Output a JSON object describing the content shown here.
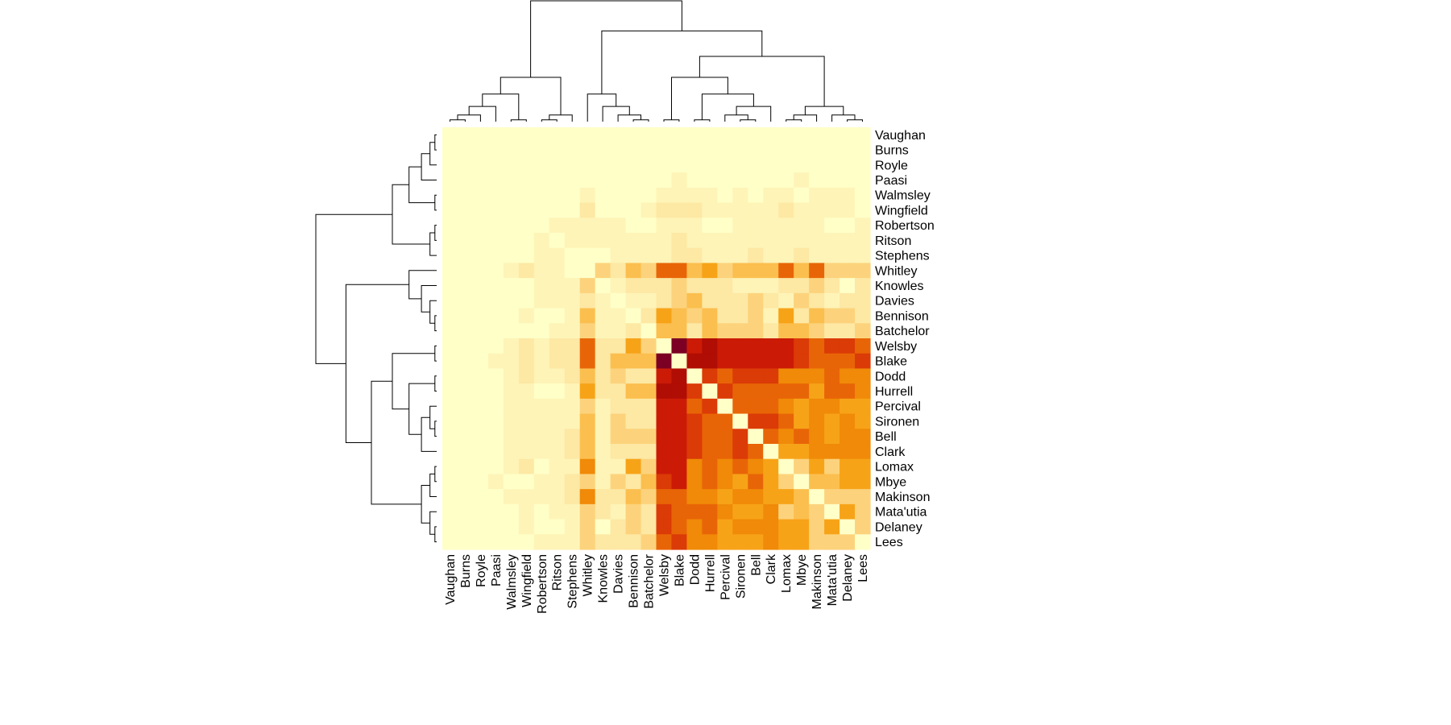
{
  "chart_data": {
    "type": "heatmap",
    "title": "",
    "xlabel": "",
    "ylabel": "",
    "rows": [
      "Vaughan",
      "Burns",
      "Royle",
      "Paasi",
      "Walmsley",
      "Wingfield",
      "Robertson",
      "Ritson",
      "Stephens",
      "Whitley",
      "Knowles",
      "Davies",
      "Bennison",
      "Batchelor",
      "Welsby",
      "Blake",
      "Dodd",
      "Hurrell",
      "Percival",
      "Sironen",
      "Bell",
      "Clark",
      "Lomax",
      "Mbye",
      "Makinson",
      "Mata'utia",
      "Delaney",
      "Lees"
    ],
    "columns": [
      "Vaughan",
      "Burns",
      "Royle",
      "Paasi",
      "Walmsley",
      "Wingfield",
      "Robertson",
      "Ritson",
      "Stephens",
      "Whitley",
      "Knowles",
      "Davies",
      "Bennison",
      "Batchelor",
      "Welsby",
      "Blake",
      "Dodd",
      "Hurrell",
      "Percival",
      "Sironen",
      "Bell",
      "Clark",
      "Lomax",
      "Mbye",
      "Makinson",
      "Mata'utia",
      "Delaney",
      "Lees"
    ],
    "color_scale": [
      "#ffffc8",
      "#fef4b7",
      "#fde8a4",
      "#fcd37c",
      "#fbbf4f",
      "#f7a318",
      "#f08a08",
      "#e86507",
      "#db3b07",
      "#cb1b07",
      "#b00d04",
      "#7b0023"
    ],
    "diagonal_color": "#ffffc8",
    "dendrograms": true,
    "values": [
      [
        0,
        0,
        0,
        0,
        0,
        0,
        0,
        0,
        0,
        0,
        0,
        0,
        0,
        0,
        0,
        0,
        0,
        0,
        0,
        0,
        0,
        0,
        0,
        0,
        0,
        0,
        0,
        0
      ],
      [
        0,
        0,
        0,
        0,
        0,
        0,
        0,
        0,
        0,
        0,
        0,
        0,
        0,
        0,
        0,
        0,
        0,
        0,
        0,
        0,
        0,
        0,
        0,
        0,
        0,
        0,
        0,
        0
      ],
      [
        0,
        0,
        0,
        0,
        0,
        0,
        0,
        0,
        0,
        0,
        0,
        0,
        0,
        0,
        0,
        0,
        0,
        0,
        0,
        0,
        0,
        0,
        0,
        0,
        0,
        0,
        0,
        0
      ],
      [
        0,
        0,
        0,
        0,
        0,
        0,
        0,
        0,
        0,
        0,
        0,
        0,
        0,
        0,
        0,
        1,
        0,
        0,
        0,
        0,
        0,
        0,
        0,
        1,
        0,
        0,
        0,
        0
      ],
      [
        0,
        0,
        0,
        0,
        0,
        0,
        0,
        0,
        0,
        1,
        0,
        0,
        0,
        0,
        1,
        1,
        1,
        1,
        0,
        1,
        0,
        1,
        1,
        0,
        1,
        1,
        1,
        0
      ],
      [
        0,
        0,
        0,
        0,
        0,
        0,
        0,
        0,
        0,
        2,
        0,
        0,
        0,
        1,
        2,
        2,
        2,
        1,
        1,
        1,
        1,
        1,
        2,
        1,
        1,
        1,
        1,
        0
      ],
      [
        0,
        0,
        0,
        0,
        0,
        0,
        0,
        1,
        1,
        1,
        1,
        1,
        0,
        0,
        1,
        1,
        1,
        0,
        0,
        1,
        1,
        1,
        1,
        1,
        1,
        0,
        0,
        1
      ],
      [
        0,
        0,
        0,
        0,
        0,
        0,
        1,
        0,
        1,
        1,
        1,
        1,
        1,
        1,
        1,
        2,
        1,
        1,
        1,
        1,
        1,
        1,
        1,
        1,
        1,
        1,
        1,
        1
      ],
      [
        0,
        0,
        0,
        0,
        0,
        0,
        1,
        1,
        0,
        0,
        0,
        1,
        1,
        1,
        1,
        2,
        2,
        1,
        1,
        1,
        2,
        1,
        1,
        2,
        1,
        1,
        1,
        1
      ],
      [
        0,
        0,
        0,
        0,
        1,
        2,
        1,
        1,
        0,
        0,
        3,
        2,
        4,
        3,
        7,
        7,
        4,
        5,
        3,
        4,
        4,
        4,
        7,
        4,
        7,
        3,
        3,
        3
      ],
      [
        0,
        0,
        0,
        0,
        0,
        0,
        1,
        1,
        1,
        3,
        0,
        1,
        2,
        2,
        2,
        3,
        2,
        2,
        2,
        1,
        1,
        1,
        2,
        2,
        3,
        2,
        0,
        2
      ],
      [
        0,
        0,
        0,
        0,
        0,
        0,
        1,
        1,
        1,
        2,
        1,
        0,
        1,
        1,
        2,
        3,
        4,
        2,
        2,
        2,
        3,
        2,
        1,
        3,
        2,
        1,
        2,
        2
      ],
      [
        0,
        0,
        0,
        0,
        0,
        1,
        0,
        0,
        1,
        4,
        1,
        1,
        0,
        2,
        5,
        4,
        3,
        4,
        2,
        2,
        3,
        1,
        5,
        2,
        4,
        3,
        3,
        2
      ],
      [
        0,
        0,
        0,
        0,
        0,
        0,
        0,
        1,
        1,
        3,
        1,
        1,
        2,
        0,
        4,
        4,
        2,
        4,
        3,
        3,
        3,
        2,
        4,
        4,
        3,
        2,
        2,
        3
      ],
      [
        0,
        0,
        0,
        0,
        1,
        2,
        1,
        2,
        2,
        7,
        2,
        2,
        5,
        3,
        0,
        11,
        9,
        10,
        9,
        9,
        9,
        9,
        9,
        8,
        7,
        8,
        8,
        7
      ],
      [
        0,
        0,
        0,
        1,
        1,
        2,
        1,
        2,
        2,
        7,
        2,
        4,
        4,
        4,
        11,
        0,
        10,
        10,
        9,
        9,
        9,
        9,
        9,
        8,
        7,
        7,
        7,
        8
      ],
      [
        0,
        0,
        0,
        0,
        1,
        2,
        1,
        1,
        2,
        4,
        2,
        3,
        2,
        2,
        9,
        10,
        0,
        8,
        7,
        8,
        8,
        8,
        6,
        6,
        6,
        7,
        6,
        6
      ],
      [
        0,
        0,
        0,
        0,
        1,
        1,
        0,
        0,
        1,
        5,
        2,
        2,
        4,
        4,
        10,
        10,
        8,
        0,
        8,
        7,
        7,
        7,
        7,
        7,
        5,
        7,
        7,
        6
      ],
      [
        0,
        0,
        0,
        0,
        1,
        1,
        1,
        1,
        1,
        3,
        1,
        2,
        2,
        2,
        9,
        9,
        7,
        8,
        0,
        7,
        7,
        7,
        6,
        5,
        6,
        6,
        5,
        5
      ],
      [
        0,
        0,
        0,
        0,
        1,
        1,
        1,
        1,
        1,
        4,
        1,
        3,
        2,
        2,
        9,
        9,
        8,
        7,
        7,
        0,
        8,
        8,
        7,
        5,
        6,
        5,
        6,
        5
      ],
      [
        0,
        0,
        0,
        0,
        1,
        1,
        1,
        1,
        2,
        4,
        1,
        3,
        3,
        3,
        9,
        9,
        8,
        7,
        7,
        8,
        0,
        7,
        6,
        7,
        6,
        5,
        6,
        6
      ],
      [
        0,
        0,
        0,
        0,
        1,
        1,
        1,
        1,
        2,
        4,
        1,
        2,
        2,
        2,
        9,
        9,
        8,
        7,
        7,
        8,
        7,
        0,
        5,
        5,
        6,
        6,
        6,
        6
      ],
      [
        0,
        0,
        0,
        0,
        1,
        2,
        0,
        1,
        1,
        6,
        1,
        1,
        5,
        3,
        9,
        9,
        6,
        7,
        6,
        7,
        6,
        5,
        0,
        3,
        5,
        3,
        5,
        5
      ],
      [
        0,
        0,
        0,
        1,
        0,
        0,
        1,
        1,
        2,
        3,
        1,
        3,
        2,
        4,
        8,
        9,
        6,
        7,
        6,
        5,
        7,
        5,
        3,
        0,
        4,
        4,
        5,
        5
      ],
      [
        0,
        0,
        0,
        0,
        1,
        1,
        1,
        1,
        2,
        6,
        2,
        2,
        4,
        3,
        7,
        7,
        6,
        6,
        5,
        6,
        6,
        5,
        5,
        4,
        0,
        3,
        3,
        3
      ],
      [
        0,
        0,
        0,
        0,
        0,
        1,
        0,
        1,
        1,
        3,
        2,
        1,
        3,
        2,
        8,
        7,
        7,
        7,
        6,
        5,
        5,
        6,
        3,
        4,
        3,
        0,
        5,
        3
      ],
      [
        0,
        0,
        0,
        0,
        0,
        1,
        0,
        0,
        1,
        3,
        0,
        2,
        3,
        2,
        8,
        7,
        6,
        7,
        5,
        6,
        6,
        6,
        5,
        5,
        3,
        5,
        0,
        3
      ],
      [
        0,
        0,
        0,
        0,
        0,
        0,
        1,
        1,
        1,
        3,
        2,
        2,
        2,
        3,
        7,
        8,
        6,
        6,
        5,
        5,
        5,
        6,
        5,
        5,
        3,
        3,
        3,
        0
      ]
    ]
  }
}
